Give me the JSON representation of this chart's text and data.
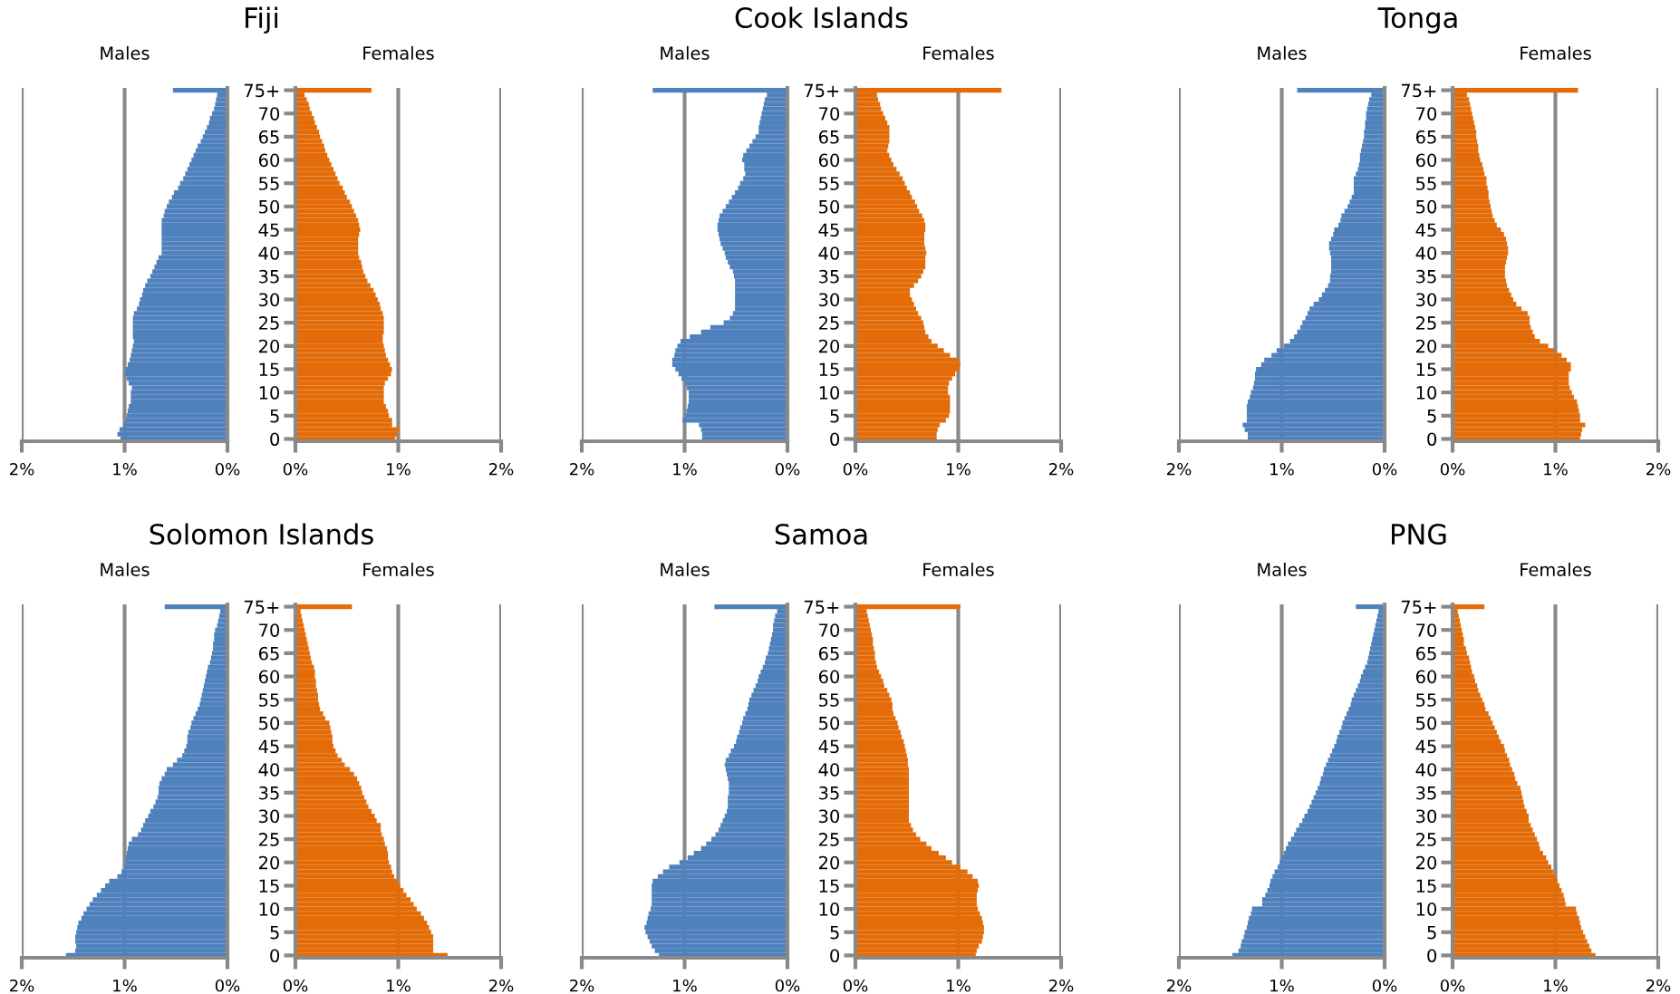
{
  "chart_data": [
    {
      "type": "bar",
      "orientation": "horizontal",
      "title": "Fiji",
      "subtitle": "Males",
      "grid": "x",
      "categories": [
        null,
        null,
        null,
        null,
        null,
        null,
        null,
        null,
        null,
        null,
        null,
        null,
        null,
        null,
        null,
        null,
        null,
        null,
        null,
        null,
        null,
        null,
        null,
        null,
        null,
        null,
        null,
        null,
        null,
        null,
        null,
        null,
        null,
        null,
        null,
        null,
        null,
        null,
        null,
        null,
        null,
        null,
        null,
        null,
        null,
        null,
        null,
        null,
        null,
        null,
        null,
        null,
        null,
        null,
        null,
        null,
        null,
        null,
        null,
        null,
        null,
        null,
        null,
        null,
        null,
        null,
        null,
        null,
        null,
        null,
        null,
        null,
        null,
        null,
        null,
        null
      ],
      "xlim": [
        2,
        0
      ],
      "xticks": [
        {
          "value": 2,
          "label": "2%"
        },
        {
          "value": 1,
          "label": "1%"
        },
        {
          "value": 0,
          "label": "0%"
        }
      ],
      "series": [
        {
          "color": "#4f81bd",
          "values": [
            0.53,
            0.1,
            0.11,
            0.12,
            0.13,
            0.15,
            0.17,
            0.18,
            0.2,
            0.22,
            0.24,
            0.26,
            0.29,
            0.31,
            0.33,
            0.35,
            0.37,
            0.39,
            0.41,
            0.43,
            0.46,
            0.48,
            0.52,
            0.54,
            0.57,
            0.59,
            0.61,
            0.62,
            0.64,
            0.64,
            0.64,
            0.64,
            0.64,
            0.64,
            0.64,
            0.64,
            0.67,
            0.69,
            0.71,
            0.73,
            0.75,
            0.78,
            0.8,
            0.82,
            0.83,
            0.85,
            0.86,
            0.88,
            0.91,
            0.92,
            0.92,
            0.92,
            0.92,
            0.92,
            0.91,
            0.92,
            0.93,
            0.94,
            0.95,
            0.97,
            0.99,
            1.0,
            0.98,
            0.96,
            0.93,
            0.94,
            0.94,
            0.94,
            0.96,
            0.97,
            0.98,
            0.99,
            1.01,
            1.05,
            1.07,
            1.04
          ]
        }
      ]
    },
    {
      "type": "bar",
      "orientation": "horizontal",
      "subtitle": "Females",
      "grid": "x",
      "categories": [
        "75+",
        null,
        null,
        null,
        null,
        "70",
        null,
        null,
        null,
        null,
        "65",
        null,
        null,
        null,
        null,
        "60",
        null,
        null,
        null,
        null,
        "55",
        null,
        null,
        null,
        null,
        "50",
        null,
        null,
        null,
        null,
        "45",
        null,
        null,
        null,
        null,
        "40",
        null,
        null,
        null,
        null,
        "35",
        null,
        null,
        null,
        null,
        "30",
        null,
        null,
        null,
        null,
        "25",
        null,
        null,
        null,
        null,
        "20",
        null,
        null,
        null,
        null,
        "15",
        null,
        null,
        null,
        null,
        "10",
        null,
        null,
        null,
        null,
        "5",
        null,
        null,
        null,
        null,
        "0"
      ],
      "xlim": [
        0,
        2
      ],
      "xticks": [
        {
          "value": 0,
          "label": "0%"
        },
        {
          "value": 1,
          "label": "1%"
        },
        {
          "value": 2,
          "label": "2%"
        }
      ],
      "series": [
        {
          "color": "#e36c09",
          "values": [
            0.74,
            0.09,
            0.11,
            0.13,
            0.14,
            0.16,
            0.18,
            0.19,
            0.21,
            0.23,
            0.24,
            0.26,
            0.28,
            0.29,
            0.31,
            0.33,
            0.35,
            0.37,
            0.39,
            0.41,
            0.43,
            0.46,
            0.48,
            0.5,
            0.53,
            0.55,
            0.57,
            0.59,
            0.61,
            0.62,
            0.63,
            0.62,
            0.61,
            0.61,
            0.61,
            0.61,
            0.62,
            0.64,
            0.65,
            0.66,
            0.68,
            0.7,
            0.73,
            0.76,
            0.78,
            0.8,
            0.82,
            0.83,
            0.85,
            0.86,
            0.86,
            0.86,
            0.86,
            0.85,
            0.85,
            0.86,
            0.87,
            0.88,
            0.9,
            0.92,
            0.94,
            0.93,
            0.9,
            0.87,
            0.86,
            0.86,
            0.86,
            0.86,
            0.88,
            0.9,
            0.91,
            0.94,
            0.94,
            1.01,
            0.99,
            0.97
          ]
        }
      ]
    },
    {
      "type": "bar",
      "orientation": "horizontal",
      "title": "Cook Islands",
      "subtitle": "Males",
      "grid": "x",
      "categories": [
        null,
        null,
        null,
        null,
        null,
        null,
        null,
        null,
        null,
        null,
        null,
        null,
        null,
        null,
        null,
        null,
        null,
        null,
        null,
        null,
        null,
        null,
        null,
        null,
        null,
        null,
        null,
        null,
        null,
        null,
        null,
        null,
        null,
        null,
        null,
        null,
        null,
        null,
        null,
        null,
        null,
        null,
        null,
        null,
        null,
        null,
        null,
        null,
        null,
        null,
        null,
        null,
        null,
        null,
        null,
        null,
        null,
        null,
        null,
        null,
        null,
        null,
        null,
        null,
        null,
        null,
        null,
        null,
        null,
        null,
        null,
        null,
        null,
        null,
        null,
        null
      ],
      "xlim": [
        2,
        0
      ],
      "xticks": [
        {
          "value": 2,
          "label": "2%"
        },
        {
          "value": 1,
          "label": "1%"
        },
        {
          "value": 0,
          "label": "0%"
        }
      ],
      "series": [
        {
          "color": "#4f81bd",
          "values": [
            1.31,
            0.2,
            0.22,
            0.23,
            0.24,
            0.25,
            0.26,
            0.27,
            0.28,
            0.28,
            0.31,
            0.34,
            0.37,
            0.4,
            0.43,
            0.44,
            0.42,
            0.42,
            0.41,
            0.43,
            0.46,
            0.48,
            0.51,
            0.54,
            0.57,
            0.6,
            0.63,
            0.66,
            0.67,
            0.68,
            0.68,
            0.67,
            0.66,
            0.65,
            0.63,
            0.61,
            0.6,
            0.58,
            0.56,
            0.53,
            0.52,
            0.51,
            0.51,
            0.51,
            0.51,
            0.51,
            0.51,
            0.51,
            0.53,
            0.56,
            0.62,
            0.75,
            0.84,
            0.95,
            1.04,
            1.07,
            1.09,
            1.1,
            1.12,
            1.12,
            1.09,
            1.06,
            1.03,
            0.99,
            0.98,
            0.96,
            0.96,
            0.96,
            0.97,
            0.98,
            0.99,
            1.02,
            0.86,
            0.84,
            0.83,
            0.83
          ]
        }
      ]
    },
    {
      "type": "bar",
      "orientation": "horizontal",
      "subtitle": "Females",
      "grid": "x",
      "categories": [
        "75+",
        null,
        null,
        null,
        null,
        "70",
        null,
        null,
        null,
        null,
        "65",
        null,
        null,
        null,
        null,
        "60",
        null,
        null,
        null,
        null,
        "55",
        null,
        null,
        null,
        null,
        "50",
        null,
        null,
        null,
        null,
        "45",
        null,
        null,
        null,
        null,
        "40",
        null,
        null,
        null,
        null,
        "35",
        null,
        null,
        null,
        null,
        "30",
        null,
        null,
        null,
        null,
        "25",
        null,
        null,
        null,
        null,
        "20",
        null,
        null,
        null,
        null,
        "15",
        null,
        null,
        null,
        null,
        "10",
        null,
        null,
        null,
        null,
        "5",
        null,
        null,
        null,
        null,
        "0"
      ],
      "xlim": [
        0,
        2
      ],
      "xticks": [
        {
          "value": 0,
          "label": "0%"
        },
        {
          "value": 1,
          "label": "1%"
        },
        {
          "value": 2,
          "label": "2%"
        }
      ],
      "series": [
        {
          "color": "#e36c09",
          "values": [
            1.42,
            0.21,
            0.22,
            0.24,
            0.25,
            0.27,
            0.29,
            0.31,
            0.33,
            0.33,
            0.33,
            0.33,
            0.32,
            0.31,
            0.33,
            0.35,
            0.37,
            0.4,
            0.43,
            0.46,
            0.48,
            0.5,
            0.53,
            0.55,
            0.58,
            0.6,
            0.62,
            0.65,
            0.67,
            0.68,
            0.68,
            0.67,
            0.67,
            0.67,
            0.68,
            0.69,
            0.68,
            0.68,
            0.68,
            0.66,
            0.64,
            0.61,
            0.57,
            0.53,
            0.53,
            0.55,
            0.57,
            0.59,
            0.61,
            0.64,
            0.66,
            0.67,
            0.68,
            0.71,
            0.74,
            0.8,
            0.86,
            0.92,
            1.0,
            1.02,
            1.01,
            0.97,
            0.94,
            0.91,
            0.9,
            0.9,
            0.92,
            0.92,
            0.92,
            0.92,
            0.91,
            0.88,
            0.82,
            0.8,
            0.79,
            0.79
          ]
        }
      ]
    },
    {
      "type": "bar",
      "orientation": "horizontal",
      "title": "Tonga",
      "subtitle": "Males",
      "grid": "x",
      "categories": [
        null,
        null,
        null,
        null,
        null,
        null,
        null,
        null,
        null,
        null,
        null,
        null,
        null,
        null,
        null,
        null,
        null,
        null,
        null,
        null,
        null,
        null,
        null,
        null,
        null,
        null,
        null,
        null,
        null,
        null,
        null,
        null,
        null,
        null,
        null,
        null,
        null,
        null,
        null,
        null,
        null,
        null,
        null,
        null,
        null,
        null,
        null,
        null,
        null,
        null,
        null,
        null,
        null,
        null,
        null,
        null,
        null,
        null,
        null,
        null,
        null,
        null,
        null,
        null,
        null,
        null,
        null,
        null,
        null,
        null,
        null,
        null,
        null,
        null,
        null,
        null
      ],
      "xlim": [
        2,
        0
      ],
      "xticks": [
        {
          "value": 2,
          "label": "2%"
        },
        {
          "value": 1,
          "label": "1%"
        },
        {
          "value": 0,
          "label": "0%"
        }
      ],
      "series": [
        {
          "color": "#4f81bd",
          "values": [
            0.85,
            0.13,
            0.15,
            0.16,
            0.17,
            0.18,
            0.18,
            0.19,
            0.19,
            0.2,
            0.2,
            0.21,
            0.22,
            0.23,
            0.24,
            0.24,
            0.25,
            0.26,
            0.28,
            0.3,
            0.3,
            0.3,
            0.3,
            0.32,
            0.34,
            0.36,
            0.39,
            0.42,
            0.43,
            0.45,
            0.49,
            0.5,
            0.52,
            0.54,
            0.54,
            0.53,
            0.52,
            0.52,
            0.52,
            0.52,
            0.53,
            0.53,
            0.55,
            0.58,
            0.61,
            0.64,
            0.69,
            0.73,
            0.75,
            0.77,
            0.8,
            0.82,
            0.85,
            0.88,
            0.92,
            0.98,
            1.05,
            1.1,
            1.17,
            1.2,
            1.25,
            1.26,
            1.26,
            1.27,
            1.28,
            1.3,
            1.31,
            1.33,
            1.34,
            1.34,
            1.34,
            1.34,
            1.38,
            1.36,
            1.33,
            1.33
          ]
        }
      ]
    },
    {
      "type": "bar",
      "orientation": "horizontal",
      "subtitle": "Females",
      "grid": "x",
      "categories": [
        "75+",
        null,
        null,
        null,
        null,
        "70",
        null,
        null,
        null,
        null,
        "65",
        null,
        null,
        null,
        null,
        "60",
        null,
        null,
        null,
        null,
        "55",
        null,
        null,
        null,
        null,
        "50",
        null,
        null,
        null,
        null,
        "45",
        null,
        null,
        null,
        null,
        "40",
        null,
        null,
        null,
        null,
        "35",
        null,
        null,
        null,
        null,
        "30",
        null,
        null,
        null,
        null,
        "25",
        null,
        null,
        null,
        null,
        "20",
        null,
        null,
        null,
        null,
        "15",
        null,
        null,
        null,
        null,
        "10",
        null,
        null,
        null,
        null,
        "5",
        null,
        null,
        null,
        null,
        "0"
      ],
      "xlim": [
        0,
        2
      ],
      "xticks": [
        {
          "value": 0,
          "label": "0%"
        },
        {
          "value": 1,
          "label": "1%"
        },
        {
          "value": 2,
          "label": "2%"
        }
      ],
      "series": [
        {
          "color": "#e36c09",
          "values": [
            1.22,
            0.14,
            0.16,
            0.17,
            0.18,
            0.19,
            0.2,
            0.21,
            0.22,
            0.23,
            0.23,
            0.24,
            0.25,
            0.25,
            0.26,
            0.27,
            0.29,
            0.3,
            0.31,
            0.33,
            0.33,
            0.34,
            0.35,
            0.35,
            0.36,
            0.37,
            0.38,
            0.39,
            0.41,
            0.43,
            0.47,
            0.5,
            0.52,
            0.53,
            0.54,
            0.54,
            0.53,
            0.52,
            0.51,
            0.51,
            0.51,
            0.52,
            0.53,
            0.55,
            0.57,
            0.59,
            0.62,
            0.67,
            0.73,
            0.75,
            0.75,
            0.76,
            0.78,
            0.8,
            0.85,
            0.93,
            0.99,
            1.06,
            1.11,
            1.15,
            1.15,
            1.13,
            1.13,
            1.13,
            1.14,
            1.16,
            1.18,
            1.21,
            1.22,
            1.23,
            1.24,
            1.24,
            1.29,
            1.26,
            1.25,
            1.24
          ]
        }
      ]
    },
    {
      "type": "bar",
      "orientation": "horizontal",
      "title": "Solomon Islands",
      "subtitle": "Males",
      "grid": "x",
      "categories": [
        null,
        null,
        null,
        null,
        null,
        null,
        null,
        null,
        null,
        null,
        null,
        null,
        null,
        null,
        null,
        null,
        null,
        null,
        null,
        null,
        null,
        null,
        null,
        null,
        null,
        null,
        null,
        null,
        null,
        null,
        null,
        null,
        null,
        null,
        null,
        null,
        null,
        null,
        null,
        null,
        null,
        null,
        null,
        null,
        null,
        null,
        null,
        null,
        null,
        null,
        null,
        null,
        null,
        null,
        null,
        null,
        null,
        null,
        null,
        null,
        null,
        null,
        null,
        null,
        null,
        null,
        null,
        null,
        null,
        null,
        null,
        null,
        null,
        null,
        null,
        null
      ],
      "xlim": [
        2,
        0
      ],
      "xticks": [
        {
          "value": 2,
          "label": "2%"
        },
        {
          "value": 1,
          "label": "1%"
        },
        {
          "value": 0,
          "label": "0%"
        }
      ],
      "series": [
        {
          "color": "#4f81bd",
          "values": [
            0.61,
            0.07,
            0.08,
            0.09,
            0.1,
            0.12,
            0.13,
            0.13,
            0.14,
            0.14,
            0.15,
            0.16,
            0.17,
            0.19,
            0.2,
            0.21,
            0.22,
            0.23,
            0.24,
            0.25,
            0.26,
            0.27,
            0.29,
            0.31,
            0.33,
            0.35,
            0.36,
            0.38,
            0.39,
            0.39,
            0.4,
            0.42,
            0.44,
            0.49,
            0.53,
            0.59,
            0.61,
            0.64,
            0.66,
            0.67,
            0.67,
            0.68,
            0.7,
            0.72,
            0.75,
            0.77,
            0.8,
            0.82,
            0.84,
            0.87,
            0.93,
            0.96,
            0.97,
            0.98,
            0.99,
            0.99,
            1.0,
            1.03,
            1.07,
            1.15,
            1.19,
            1.23,
            1.27,
            1.31,
            1.34,
            1.37,
            1.4,
            1.42,
            1.45,
            1.46,
            1.47,
            1.48,
            1.48,
            1.47,
            1.48,
            1.57
          ]
        }
      ]
    },
    {
      "type": "bar",
      "orientation": "horizontal",
      "subtitle": "Females",
      "grid": "x",
      "categories": [
        "75+",
        null,
        null,
        null,
        null,
        "70",
        null,
        null,
        null,
        null,
        "65",
        null,
        null,
        null,
        null,
        "60",
        null,
        null,
        null,
        null,
        "55",
        null,
        null,
        null,
        null,
        "50",
        null,
        null,
        null,
        null,
        "45",
        null,
        null,
        null,
        null,
        "40",
        null,
        null,
        null,
        null,
        "35",
        null,
        null,
        null,
        null,
        "30",
        null,
        null,
        null,
        null,
        "25",
        null,
        null,
        null,
        null,
        "20",
        null,
        null,
        null,
        null,
        "15",
        null,
        null,
        null,
        null,
        "10",
        null,
        null,
        null,
        null,
        "5",
        null,
        null,
        null,
        null,
        "0"
      ],
      "xlim": [
        0,
        2
      ],
      "xticks": [
        {
          "value": 0,
          "label": "0%"
        },
        {
          "value": 1,
          "label": "1%"
        },
        {
          "value": 2,
          "label": "2%"
        }
      ],
      "series": [
        {
          "color": "#e36c09",
          "values": [
            0.55,
            0.05,
            0.06,
            0.07,
            0.08,
            0.09,
            0.1,
            0.11,
            0.12,
            0.13,
            0.14,
            0.15,
            0.16,
            0.18,
            0.19,
            0.19,
            0.2,
            0.2,
            0.21,
            0.22,
            0.22,
            0.23,
            0.24,
            0.27,
            0.29,
            0.33,
            0.34,
            0.35,
            0.36,
            0.36,
            0.37,
            0.39,
            0.41,
            0.45,
            0.48,
            0.53,
            0.57,
            0.6,
            0.62,
            0.64,
            0.65,
            0.67,
            0.69,
            0.71,
            0.74,
            0.77,
            0.79,
            0.83,
            0.83,
            0.84,
            0.86,
            0.87,
            0.89,
            0.9,
            0.9,
            0.91,
            0.93,
            0.94,
            0.96,
            0.99,
            1.02,
            1.05,
            1.08,
            1.12,
            1.15,
            1.18,
            1.22,
            1.25,
            1.28,
            1.3,
            1.32,
            1.34,
            1.34,
            1.34,
            1.34,
            1.48
          ]
        }
      ]
    },
    {
      "type": "bar",
      "orientation": "horizontal",
      "title": "Samoa",
      "subtitle": "Males",
      "grid": "x",
      "categories": [
        null,
        null,
        null,
        null,
        null,
        null,
        null,
        null,
        null,
        null,
        null,
        null,
        null,
        null,
        null,
        null,
        null,
        null,
        null,
        null,
        null,
        null,
        null,
        null,
        null,
        null,
        null,
        null,
        null,
        null,
        null,
        null,
        null,
        null,
        null,
        null,
        null,
        null,
        null,
        null,
        null,
        null,
        null,
        null,
        null,
        null,
        null,
        null,
        null,
        null,
        null,
        null,
        null,
        null,
        null,
        null,
        null,
        null,
        null,
        null,
        null,
        null,
        null,
        null,
        null,
        null,
        null,
        null,
        null,
        null,
        null,
        null,
        null,
        null,
        null,
        null
      ],
      "xlim": [
        2,
        0
      ],
      "xticks": [
        {
          "value": 2,
          "label": "2%"
        },
        {
          "value": 1,
          "label": "1%"
        },
        {
          "value": 0,
          "label": "0%"
        }
      ],
      "series": [
        {
          "color": "#4f81bd",
          "values": [
            0.71,
            0.1,
            0.12,
            0.13,
            0.14,
            0.14,
            0.15,
            0.16,
            0.17,
            0.18,
            0.19,
            0.21,
            0.22,
            0.24,
            0.26,
            0.28,
            0.29,
            0.31,
            0.33,
            0.35,
            0.37,
            0.38,
            0.39,
            0.41,
            0.43,
            0.44,
            0.46,
            0.47,
            0.49,
            0.5,
            0.52,
            0.55,
            0.57,
            0.6,
            0.61,
            0.6,
            0.59,
            0.58,
            0.57,
            0.57,
            0.57,
            0.58,
            0.58,
            0.58,
            0.59,
            0.61,
            0.63,
            0.65,
            0.67,
            0.7,
            0.74,
            0.79,
            0.84,
            0.91,
            0.97,
            1.05,
            1.15,
            1.21,
            1.26,
            1.31,
            1.32,
            1.32,
            1.32,
            1.32,
            1.32,
            1.33,
            1.35,
            1.36,
            1.37,
            1.39,
            1.38,
            1.36,
            1.34,
            1.32,
            1.29,
            1.25
          ]
        }
      ]
    },
    {
      "type": "bar",
      "orientation": "horizontal",
      "subtitle": "Females",
      "grid": "x",
      "categories": [
        "75+",
        null,
        null,
        null,
        null,
        "70",
        null,
        null,
        null,
        null,
        "65",
        null,
        null,
        null,
        null,
        "60",
        null,
        null,
        null,
        null,
        "55",
        null,
        null,
        null,
        null,
        "50",
        null,
        null,
        null,
        null,
        "45",
        null,
        null,
        null,
        null,
        "40",
        null,
        null,
        null,
        null,
        "35",
        null,
        null,
        null,
        null,
        "30",
        null,
        null,
        null,
        null,
        "25",
        null,
        null,
        null,
        null,
        "20",
        null,
        null,
        null,
        null,
        "15",
        null,
        null,
        null,
        null,
        "10",
        null,
        null,
        null,
        null,
        "5",
        null,
        null,
        null,
        null,
        "0"
      ],
      "xlim": [
        0,
        2
      ],
      "xticks": [
        {
          "value": 0,
          "label": "0%"
        },
        {
          "value": 1,
          "label": "1%"
        },
        {
          "value": 2,
          "label": "2%"
        }
      ],
      "series": [
        {
          "color": "#e36c09",
          "values": [
            1.02,
            0.11,
            0.12,
            0.13,
            0.14,
            0.15,
            0.16,
            0.17,
            0.17,
            0.18,
            0.19,
            0.19,
            0.2,
            0.21,
            0.23,
            0.25,
            0.27,
            0.28,
            0.31,
            0.33,
            0.35,
            0.36,
            0.36,
            0.37,
            0.39,
            0.41,
            0.42,
            0.44,
            0.45,
            0.47,
            0.48,
            0.49,
            0.5,
            0.51,
            0.51,
            0.52,
            0.52,
            0.52,
            0.52,
            0.52,
            0.52,
            0.52,
            0.52,
            0.52,
            0.52,
            0.52,
            0.52,
            0.54,
            0.56,
            0.59,
            0.63,
            0.69,
            0.74,
            0.81,
            0.88,
            0.94,
            1.02,
            1.09,
            1.14,
            1.19,
            1.2,
            1.19,
            1.18,
            1.18,
            1.18,
            1.19,
            1.21,
            1.23,
            1.24,
            1.25,
            1.25,
            1.24,
            1.23,
            1.2,
            1.18,
            1.17
          ]
        }
      ]
    },
    {
      "type": "bar",
      "orientation": "horizontal",
      "title": "PNG",
      "subtitle": "Males",
      "grid": "x",
      "categories": [
        null,
        null,
        null,
        null,
        null,
        null,
        null,
        null,
        null,
        null,
        null,
        null,
        null,
        null,
        null,
        null,
        null,
        null,
        null,
        null,
        null,
        null,
        null,
        null,
        null,
        null,
        null,
        null,
        null,
        null,
        null,
        null,
        null,
        null,
        null,
        null,
        null,
        null,
        null,
        null,
        null,
        null,
        null,
        null,
        null,
        null,
        null,
        null,
        null,
        null,
        null,
        null,
        null,
        null,
        null,
        null,
        null,
        null,
        null,
        null,
        null,
        null,
        null,
        null,
        null,
        null,
        null,
        null,
        null,
        null,
        null,
        null,
        null,
        null,
        null,
        null
      ],
      "xlim": [
        2,
        0
      ],
      "xticks": [
        {
          "value": 2,
          "label": "2%"
        },
        {
          "value": 1,
          "label": "1%"
        },
        {
          "value": 0,
          "label": "0%"
        }
      ],
      "series": [
        {
          "color": "#4f81bd",
          "values": [
            0.28,
            0.06,
            0.07,
            0.08,
            0.09,
            0.1,
            0.11,
            0.12,
            0.13,
            0.14,
            0.15,
            0.16,
            0.17,
            0.19,
            0.21,
            0.23,
            0.24,
            0.26,
            0.28,
            0.3,
            0.32,
            0.33,
            0.35,
            0.37,
            0.39,
            0.41,
            0.42,
            0.44,
            0.46,
            0.47,
            0.49,
            0.51,
            0.53,
            0.55,
            0.57,
            0.59,
            0.6,
            0.62,
            0.63,
            0.65,
            0.67,
            0.69,
            0.71,
            0.73,
            0.75,
            0.78,
            0.8,
            0.83,
            0.86,
            0.88,
            0.91,
            0.94,
            0.96,
            0.98,
            1.0,
            1.02,
            1.04,
            1.07,
            1.09,
            1.11,
            1.12,
            1.14,
            1.16,
            1.19,
            1.19,
            1.29,
            1.3,
            1.32,
            1.33,
            1.34,
            1.36,
            1.37,
            1.39,
            1.4,
            1.42,
            1.48
          ]
        }
      ]
    },
    {
      "type": "bar",
      "orientation": "horizontal",
      "subtitle": "Females",
      "grid": "x",
      "categories": [
        "75+",
        null,
        null,
        null,
        null,
        "70",
        null,
        null,
        null,
        null,
        "65",
        null,
        null,
        null,
        null,
        "60",
        null,
        null,
        null,
        null,
        "55",
        null,
        null,
        null,
        null,
        "50",
        null,
        null,
        null,
        null,
        "45",
        null,
        null,
        null,
        null,
        "40",
        null,
        null,
        null,
        null,
        "35",
        null,
        null,
        null,
        null,
        "30",
        null,
        null,
        null,
        null,
        "25",
        null,
        null,
        null,
        null,
        "20",
        null,
        null,
        null,
        null,
        "15",
        null,
        null,
        null,
        null,
        "10",
        null,
        null,
        null,
        null,
        "5",
        null,
        null,
        null,
        null,
        "0"
      ],
      "xlim": [
        0,
        2
      ],
      "xticks": [
        {
          "value": 0,
          "label": "0%"
        },
        {
          "value": 1,
          "label": "1%"
        },
        {
          "value": 2,
          "label": "2%"
        }
      ],
      "series": [
        {
          "color": "#e36c09",
          "values": [
            0.31,
            0.05,
            0.06,
            0.07,
            0.08,
            0.09,
            0.1,
            0.11,
            0.11,
            0.13,
            0.14,
            0.16,
            0.17,
            0.18,
            0.19,
            0.21,
            0.22,
            0.24,
            0.25,
            0.27,
            0.29,
            0.31,
            0.32,
            0.35,
            0.37,
            0.39,
            0.41,
            0.43,
            0.45,
            0.47,
            0.5,
            0.51,
            0.53,
            0.55,
            0.56,
            0.58,
            0.6,
            0.61,
            0.63,
            0.66,
            0.67,
            0.68,
            0.69,
            0.7,
            0.72,
            0.74,
            0.74,
            0.76,
            0.78,
            0.8,
            0.82,
            0.84,
            0.85,
            0.88,
            0.91,
            0.93,
            0.96,
            0.98,
            1.0,
            1.02,
            1.04,
            1.06,
            1.08,
            1.09,
            1.1,
            1.2,
            1.21,
            1.23,
            1.24,
            1.25,
            1.27,
            1.29,
            1.31,
            1.33,
            1.35,
            1.39
          ]
        }
      ]
    }
  ]
}
